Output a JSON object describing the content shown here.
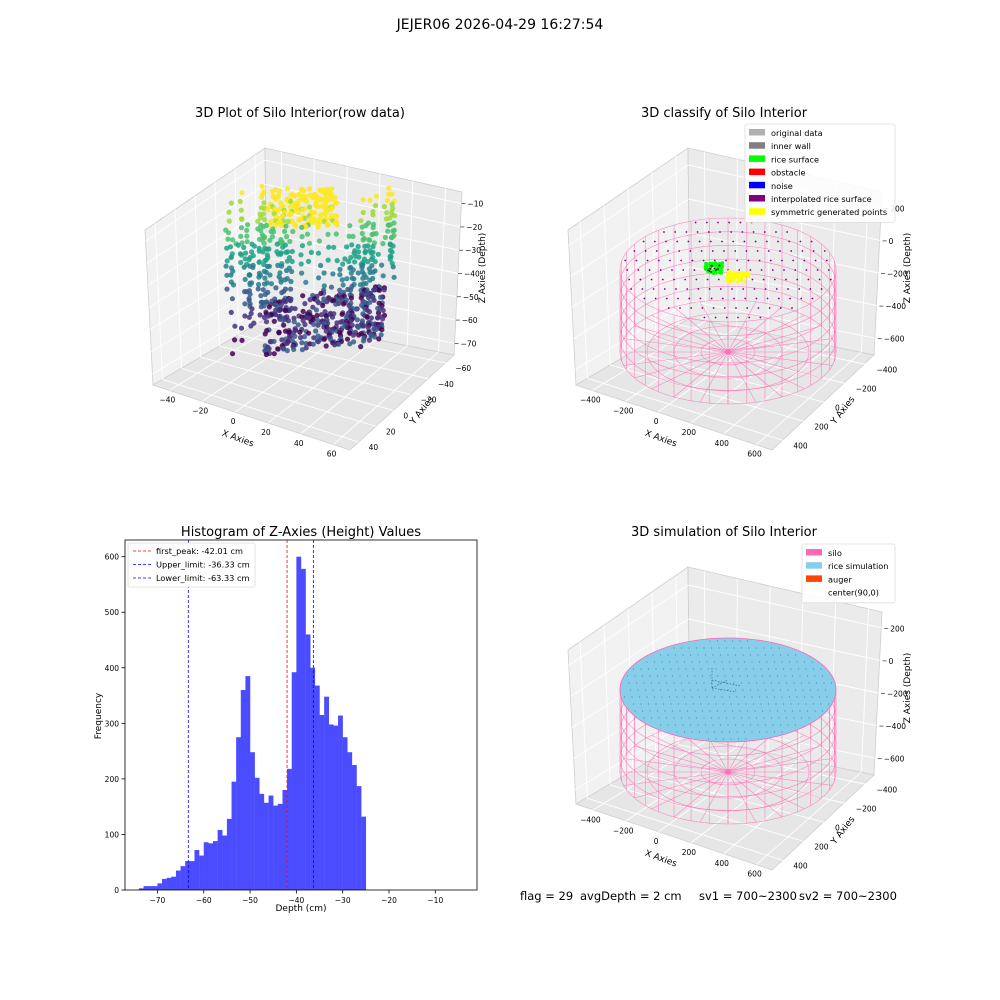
{
  "suptitle": "JEJER06 2026-04-29 16:27:54",
  "footer": {
    "flag": "flag = 29",
    "avg_depth": "avgDepth = 2 cm",
    "sv1": "sv1 = 700~2300",
    "sv2": "sv2 = 700~2300"
  },
  "colors": {
    "original_data": "#b0b0b0",
    "inner_wall": "#808080",
    "rice_surface": "#00ff00",
    "obstacle": "#ff0000",
    "noise": "#0000ff",
    "interpolated_rice_surface": "#800080",
    "symmetric_generated_points": "#ffff00",
    "silo": "#ff69b4",
    "rice_simulation": "#87ceeb",
    "auger": "#ff4500",
    "hist_bar": "#4c4cff",
    "peak_line": "#ff0000",
    "limit_line": "#0000ff"
  },
  "chart_data": [
    {
      "type": "scatter",
      "title": "3D Plot of Silo Interior(row data)",
      "xlabel": "X Axies",
      "ylabel": "Y Axies",
      "zlabel": "Z Axies (Depth)",
      "x_ticks": [
        "−40",
        "−20",
        "0",
        "20",
        "40",
        "60"
      ],
      "y_ticks": [
        "−60",
        "−40",
        "−20",
        "0",
        "20",
        "40"
      ],
      "z_ticks": [
        "−70",
        "−60",
        "−50",
        "−40",
        "−30",
        "−20",
        "−10"
      ],
      "xlim": [
        -50,
        75
      ],
      "ylim": [
        -60,
        45
      ],
      "zlim": [
        -80,
        -2
      ],
      "colormap": "viridis"
    },
    {
      "type": "scatter",
      "title": "3D classify of Silo Interior",
      "xlabel": "X Axies",
      "ylabel": "Y Axies",
      "zlabel": "Z Axies (Depth)",
      "x_ticks": [
        "−400",
        "−200",
        "0",
        "200",
        "400",
        "600"
      ],
      "y_ticks": [
        "−400",
        "−200",
        "0",
        "200",
        "400"
      ],
      "z_ticks": [
        "−600",
        "−400",
        "−200",
        "0",
        "200"
      ],
      "legend_position": "top-right",
      "legend": [
        {
          "label": "original data",
          "color_key": "original_data"
        },
        {
          "label": "inner wall",
          "color_key": "inner_wall"
        },
        {
          "label": "rice surface",
          "color_key": "rice_surface"
        },
        {
          "label": "obstacle",
          "color_key": "obstacle"
        },
        {
          "label": "noise",
          "color_key": "noise"
        },
        {
          "label": "interpolated rice surface",
          "color_key": "interpolated_rice_surface"
        },
        {
          "label": "symmetric generated points",
          "color_key": "symmetric_generated_points"
        }
      ]
    },
    {
      "type": "bar",
      "title": "Histogram of Z-Axies (Height) Values",
      "xlabel": "Depth (cm)",
      "ylabel": "Frequency",
      "xlim": [
        -77,
        -1
      ],
      "ylim": [
        0,
        630
      ],
      "x_ticks": [
        -70,
        -60,
        -50,
        -40,
        -30,
        -20,
        -10
      ],
      "y_ticks": [
        0,
        100,
        200,
        300,
        400,
        500,
        600
      ],
      "bin_start": -74,
      "bin_width": 1,
      "values": [
        3,
        7,
        7,
        7,
        12,
        20,
        22,
        24,
        35,
        43,
        52,
        52,
        72,
        62,
        86,
        84,
        88,
        108,
        98,
        128,
        195,
        275,
        360,
        385,
        248,
        202,
        173,
        157,
        170,
        152,
        155,
        180,
        218,
        392,
        600,
        578,
        460,
        400,
        368,
        315,
        348,
        298,
        296,
        314,
        275,
        248,
        225,
        187,
        132
      ],
      "vlines": [
        {
          "label": "first_peak: -42.01 cm",
          "x": -42.01,
          "color_key": "peak_line"
        },
        {
          "label": "Upper_limit: -36.33 cm",
          "x": -36.33,
          "color_key": "limit_line"
        },
        {
          "label": "Lower_limit: -63.33 cm",
          "x": -63.33,
          "color_key": "limit_line"
        }
      ],
      "legend_position": "top-left"
    },
    {
      "type": "scatter",
      "title": "3D simulation of Silo Interior",
      "xlabel": "X Axies",
      "ylabel": "Y Axies",
      "zlabel": "Z Axies (Depth)",
      "x_ticks": [
        "−400",
        "−200",
        "0",
        "200",
        "400",
        "600"
      ],
      "y_ticks": [
        "−400",
        "−200",
        "0",
        "200",
        "400"
      ],
      "z_ticks": [
        "−600",
        "−400",
        "−200",
        "0",
        "200"
      ],
      "legend_position": "top-right",
      "legend": [
        {
          "label": "silo",
          "color_key": "silo"
        },
        {
          "label": "rice simulation",
          "color_key": "rice_simulation"
        },
        {
          "label": "auger",
          "color_key": "auger"
        },
        {
          "label": "center(90,0)",
          "color_key": ""
        }
      ]
    }
  ]
}
